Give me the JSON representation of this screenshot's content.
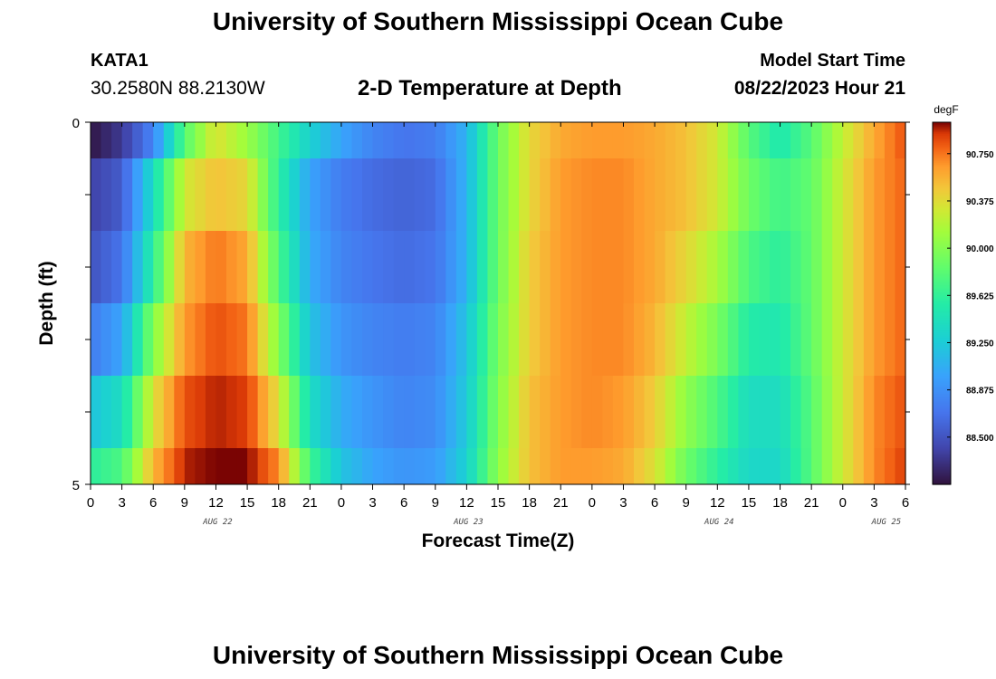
{
  "header": {
    "title": "University of Southern Mississippi Ocean Cube",
    "station_id": "KATA1",
    "station_coords": "30.2580N  88.2130W",
    "subtitle": "2-D Temperature at Depth",
    "model_label": "Model Start Time",
    "model_time": "08/22/2023 Hour 21"
  },
  "footer": {
    "title_repeat": "University of Southern Mississippi Ocean Cube"
  },
  "chart_data": {
    "type": "heatmap",
    "title": "2-D Temperature at Depth",
    "xlabel": "Forecast Time(Z)",
    "ylabel": "Depth (ft)",
    "x_tick_labels": [
      "0",
      "3",
      "6",
      "9",
      "12",
      "15",
      "18",
      "21",
      "0",
      "3",
      "6",
      "9",
      "12",
      "15",
      "18",
      "21",
      "0",
      "3",
      "6",
      "9",
      "12",
      "15",
      "18",
      "21",
      "0",
      "3",
      "6"
    ],
    "date_labels": [
      "AUG 22",
      "AUG 23",
      "AUG 24",
      "AUG 25"
    ],
    "y_tick_labels": [
      "0",
      "5"
    ],
    "ylim": [
      0,
      5
    ],
    "depth_rows_ft": [
      "0-0.5",
      "0.5-1.5",
      "1.5-2.5",
      "2.5-3.5",
      "3.5-4.5",
      "4.5-5"
    ],
    "time_knots_hour": [
      0,
      3,
      6,
      9,
      12,
      15,
      18,
      21,
      24,
      27,
      30,
      33,
      36,
      39,
      42,
      45,
      48,
      51,
      54,
      57,
      60,
      63,
      66,
      69,
      72,
      75,
      78
    ],
    "temperature_degF": [
      [
        88.15,
        88.35,
        88.8,
        89.8,
        90.35,
        90.1,
        89.7,
        89.3,
        89.0,
        88.8,
        88.7,
        88.75,
        89.1,
        89.9,
        90.4,
        90.6,
        90.65,
        90.65,
        90.6,
        90.5,
        90.3,
        89.8,
        89.5,
        89.8,
        90.25,
        90.6,
        90.85
      ],
      [
        88.4,
        88.55,
        89.4,
        90.3,
        90.5,
        90.4,
        89.6,
        89.0,
        88.75,
        88.65,
        88.6,
        88.65,
        89.1,
        89.9,
        90.4,
        90.65,
        90.7,
        90.7,
        90.6,
        90.5,
        90.3,
        89.9,
        89.7,
        89.85,
        90.3,
        90.65,
        90.8
      ],
      [
        88.5,
        88.7,
        89.6,
        90.55,
        90.75,
        90.6,
        89.75,
        89.05,
        88.8,
        88.7,
        88.65,
        88.7,
        89.1,
        89.9,
        90.45,
        90.65,
        90.7,
        90.7,
        90.6,
        90.4,
        90.15,
        89.75,
        89.6,
        89.85,
        90.3,
        90.65,
        90.8
      ],
      [
        88.75,
        89.0,
        90.0,
        90.65,
        90.85,
        90.75,
        90.0,
        89.2,
        88.9,
        88.8,
        88.75,
        88.8,
        89.2,
        89.95,
        90.45,
        90.65,
        90.7,
        90.7,
        90.55,
        90.25,
        89.95,
        89.55,
        89.5,
        89.85,
        90.3,
        90.65,
        90.8
      ],
      [
        89.2,
        89.4,
        90.35,
        90.85,
        90.95,
        90.9,
        90.35,
        89.4,
        89.05,
        88.9,
        88.8,
        88.85,
        89.25,
        90.0,
        90.5,
        90.65,
        90.7,
        90.65,
        90.45,
        90.05,
        89.75,
        89.4,
        89.4,
        89.8,
        90.3,
        90.7,
        90.85
      ],
      [
        89.6,
        89.75,
        90.55,
        90.95,
        91.0,
        91.0,
        90.7,
        89.7,
        89.2,
        89.0,
        88.9,
        88.95,
        89.3,
        90.05,
        90.5,
        90.65,
        90.65,
        90.6,
        90.35,
        89.9,
        89.6,
        89.35,
        89.35,
        89.8,
        90.3,
        90.7,
        90.9
      ]
    ],
    "colorbar": {
      "units": "degF",
      "tick_labels": [
        "90.750",
        "90.375",
        "90.000",
        "89.625",
        "89.250",
        "88.875",
        "88.500"
      ],
      "range": [
        88.125,
        91.0
      ]
    },
    "grid": false
  }
}
